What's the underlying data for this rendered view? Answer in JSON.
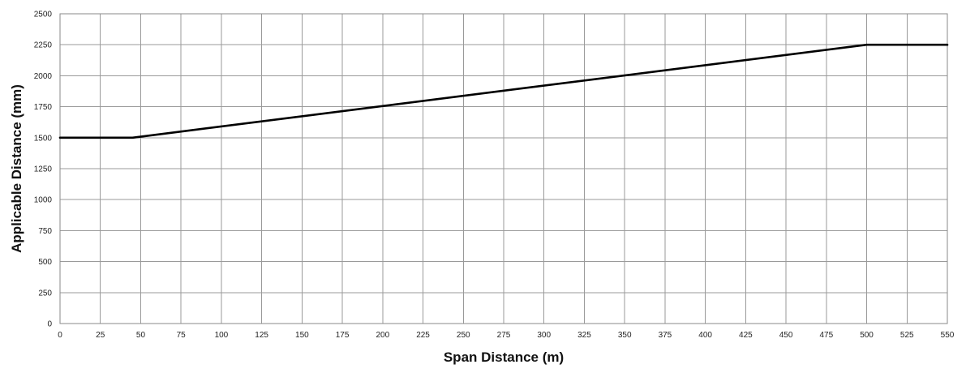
{
  "chart_data": {
    "type": "line",
    "title": "",
    "xlabel": "Span Distance (m)",
    "ylabel": "Applicable Distance (mm)",
    "xlim": [
      0,
      550
    ],
    "ylim": [
      0,
      2500
    ],
    "xticks": [
      0,
      25,
      50,
      75,
      100,
      125,
      150,
      175,
      200,
      225,
      250,
      275,
      300,
      325,
      350,
      375,
      400,
      425,
      450,
      475,
      500,
      525,
      550
    ],
    "yticks": [
      0,
      250,
      500,
      750,
      1000,
      1250,
      1500,
      1750,
      2000,
      2250,
      2500
    ],
    "grid": true,
    "series": [
      {
        "x": [
          0,
          45,
          500,
          550
        ],
        "y": [
          1500,
          1500,
          2250,
          2250
        ],
        "color": "#000000"
      }
    ]
  }
}
